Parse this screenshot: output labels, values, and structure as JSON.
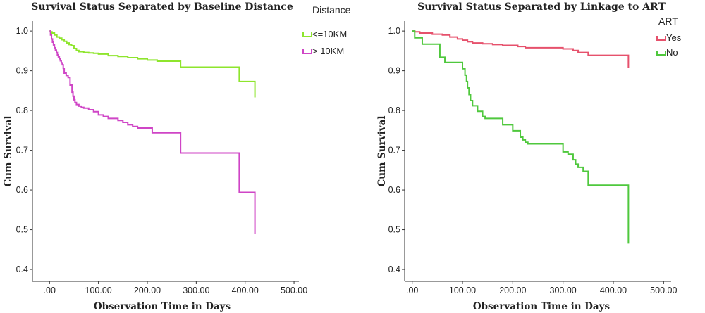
{
  "chart_data": [
    {
      "type": "line",
      "title": "Survival Status Separated by Baseline Distance",
      "xlabel": "Observation Time in Days",
      "ylabel": "Cum Survival",
      "xlim": [
        -35,
        510
      ],
      "ylim": [
        0.37,
        1.025
      ],
      "xticks": [
        0,
        100,
        200,
        300,
        400,
        500
      ],
      "xtick_labels": [
        ".00",
        "100.00",
        "200.00",
        "300.00",
        "400.00",
        "500.00"
      ],
      "yticks": [
        0.4,
        0.5,
        0.6,
        0.7,
        0.8,
        0.9,
        1.0
      ],
      "ytick_labels": [
        "0.4",
        "0.5",
        "0.6",
        "0.7",
        "0.8",
        "0.9",
        "1.0"
      ],
      "grid": false,
      "legend_title": "Distance",
      "legend_position": "top-right",
      "series": [
        {
          "name": "<=10KM",
          "color": "#8ee52d",
          "x": [
            0,
            2,
            5,
            10,
            15,
            20,
            25,
            30,
            35,
            40,
            45,
            50,
            55,
            60,
            70,
            80,
            90,
            100,
            120,
            140,
            160,
            180,
            200,
            220,
            268,
            388,
            420
          ],
          "y": [
            1.0,
            0.998,
            0.995,
            0.99,
            0.985,
            0.982,
            0.978,
            0.974,
            0.97,
            0.966,
            0.963,
            0.956,
            0.951,
            0.948,
            0.946,
            0.945,
            0.944,
            0.942,
            0.938,
            0.936,
            0.933,
            0.93,
            0.927,
            0.924,
            0.909,
            0.873,
            0.833
          ]
        },
        {
          "name": "> 10KM",
          "color": "#cf45c6",
          "x": [
            0,
            2,
            4,
            6,
            8,
            10,
            12,
            14,
            16,
            18,
            20,
            22,
            24,
            26,
            28,
            30,
            34,
            38,
            42,
            46,
            48,
            50,
            52,
            55,
            60,
            65,
            70,
            80,
            90,
            100,
            110,
            120,
            140,
            150,
            160,
            170,
            180,
            210,
            268,
            388,
            420
          ],
          "y": [
            1.0,
            0.99,
            0.98,
            0.972,
            0.965,
            0.958,
            0.952,
            0.946,
            0.94,
            0.935,
            0.93,
            0.925,
            0.92,
            0.915,
            0.906,
            0.894,
            0.888,
            0.883,
            0.864,
            0.846,
            0.836,
            0.827,
            0.82,
            0.815,
            0.811,
            0.808,
            0.806,
            0.802,
            0.797,
            0.789,
            0.785,
            0.78,
            0.775,
            0.77,
            0.764,
            0.76,
            0.756,
            0.744,
            0.693,
            0.594,
            0.49
          ]
        }
      ]
    },
    {
      "type": "line",
      "title": "Survival Status Separated by Linkage to ART",
      "xlabel": "Observation Time in Days",
      "ylabel": "Cum Survival",
      "xlim": [
        -15,
        515
      ],
      "ylim": [
        0.37,
        1.025
      ],
      "xticks": [
        0,
        100,
        200,
        300,
        400,
        500
      ],
      "xtick_labels": [
        ".00",
        "100.00",
        "200.00",
        "300.00",
        "400.00",
        "500.00"
      ],
      "yticks": [
        0.4,
        0.5,
        0.6,
        0.7,
        0.8,
        0.9,
        1.0
      ],
      "ytick_labels": [
        "0.4",
        "0.5",
        "0.6",
        "0.7",
        "0.8",
        "0.9",
        "1.0"
      ],
      "grid": false,
      "legend_title": "ART",
      "legend_position": "top-right",
      "series": [
        {
          "name": "Yes",
          "color": "#e6516c",
          "x": [
            0,
            5,
            15,
            40,
            60,
            75,
            90,
            100,
            110,
            120,
            140,
            160,
            180,
            210,
            225,
            300,
            320,
            330,
            350,
            430
          ],
          "y": [
            1.0,
            0.998,
            0.995,
            0.992,
            0.99,
            0.985,
            0.98,
            0.977,
            0.973,
            0.97,
            0.968,
            0.966,
            0.964,
            0.961,
            0.958,
            0.955,
            0.951,
            0.946,
            0.939,
            0.907
          ]
        },
        {
          "name": "No",
          "color": "#4fc83d",
          "x": [
            0,
            5,
            20,
            55,
            65,
            100,
            105,
            108,
            110,
            113,
            116,
            120,
            130,
            140,
            145,
            180,
            200,
            215,
            220,
            225,
            230,
            250,
            300,
            310,
            320,
            325,
            330,
            340,
            350,
            430
          ],
          "y": [
            1.0,
            0.983,
            0.967,
            0.934,
            0.921,
            0.905,
            0.889,
            0.873,
            0.857,
            0.84,
            0.825,
            0.812,
            0.798,
            0.785,
            0.78,
            0.764,
            0.749,
            0.733,
            0.726,
            0.72,
            0.716,
            0.716,
            0.696,
            0.69,
            0.676,
            0.665,
            0.657,
            0.647,
            0.612,
            0.465
          ]
        }
      ]
    }
  ]
}
